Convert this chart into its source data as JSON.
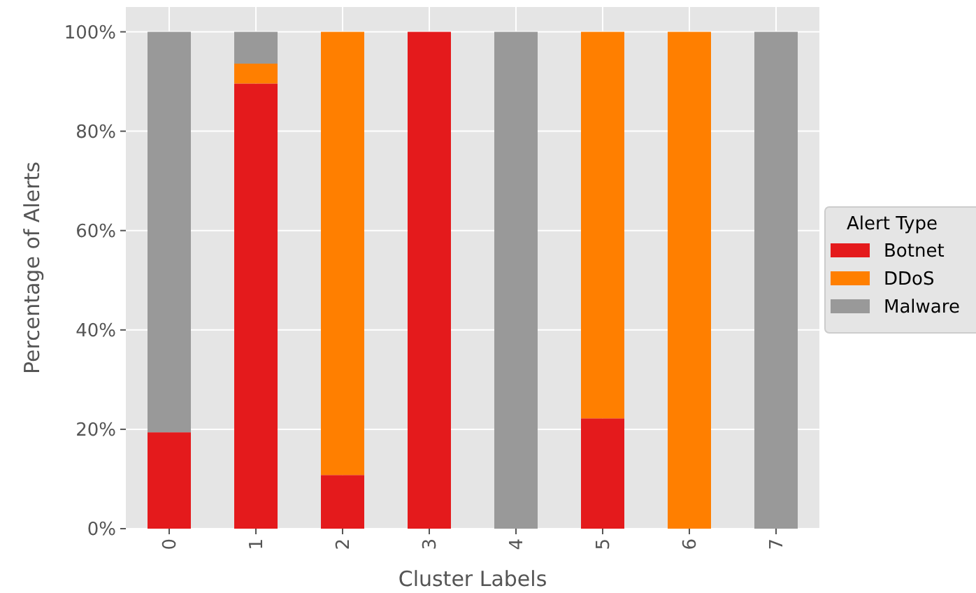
{
  "chart_data": {
    "type": "bar",
    "stacked": true,
    "xlabel": "Cluster Labels",
    "ylabel": "Percentage of Alerts",
    "legend_title": "Alert Type",
    "legend": "right",
    "grid": true,
    "categories": [
      "0",
      "1",
      "2",
      "3",
      "4",
      "5",
      "6",
      "7"
    ],
    "series": [
      {
        "name": "Botnet",
        "color": "#e41a1c",
        "values": [
          19.4,
          89.6,
          10.8,
          100,
          0,
          22.2,
          0,
          0
        ]
      },
      {
        "name": "DDoS",
        "color": "#ff7f00",
        "values": [
          0,
          4.0,
          89.2,
          0,
          0,
          77.8,
          100,
          0
        ]
      },
      {
        "name": "Malware",
        "color": "#999999",
        "values": [
          80.6,
          6.4,
          0,
          0,
          100,
          0,
          0,
          100
        ]
      }
    ],
    "ylim": [
      0,
      105
    ],
    "yticks": [
      {
        "value": 0,
        "label": "0%"
      },
      {
        "value": 20,
        "label": "20%"
      },
      {
        "value": 40,
        "label": "40%"
      },
      {
        "value": 60,
        "label": "60%"
      },
      {
        "value": 80,
        "label": "80%"
      },
      {
        "value": 100,
        "label": "100%"
      }
    ]
  }
}
